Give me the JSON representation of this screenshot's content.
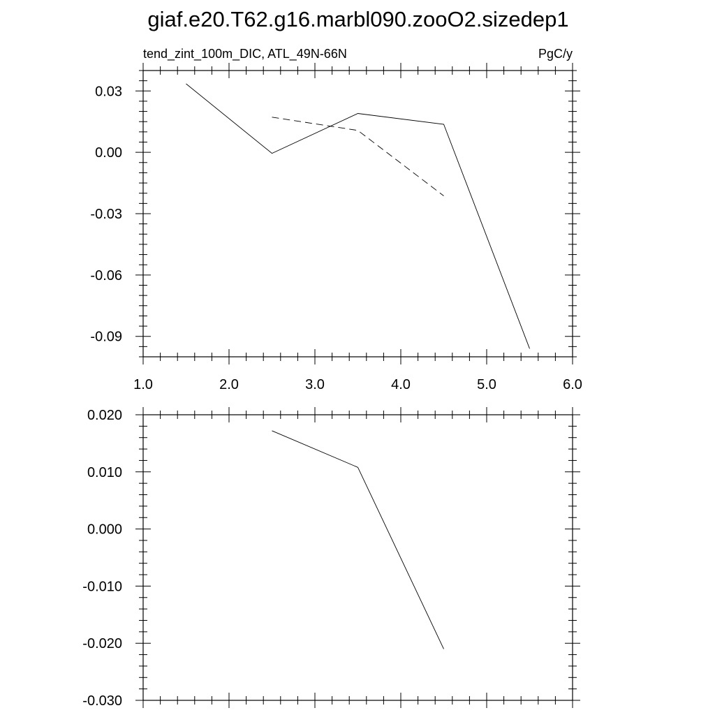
{
  "title": "giaf.e20.T62.g16.marbl090.zooO2.sizedep1",
  "chart_data": [
    {
      "type": "line",
      "left_label": "tend_zint_100m_DIC, ATL_49N-66N",
      "right_label": "PgC/y",
      "xlim": [
        1.0,
        6.0
      ],
      "ylim": [
        -0.1,
        0.04
      ],
      "x_ticks": [
        1.0,
        2.0,
        3.0,
        4.0,
        5.0,
        6.0
      ],
      "x_tick_labels": [
        "1.0",
        "2.0",
        "3.0",
        "4.0",
        "5.0",
        "6.0"
      ],
      "y_ticks": [
        0.03,
        0.0,
        -0.03,
        -0.06,
        -0.09
      ],
      "y_tick_labels": [
        "0.03",
        "0.00",
        "-0.03",
        "-0.06",
        "-0.09"
      ],
      "grid": false,
      "series": [
        {
          "style": "solid",
          "x": [
            1.5,
            2.5,
            3.5,
            4.5,
            5.5
          ],
          "y": [
            0.0335,
            -0.0005,
            0.019,
            0.0137,
            -0.096
          ]
        },
        {
          "style": "dashed",
          "x": [
            2.5,
            3.5,
            4.5
          ],
          "y": [
            0.0172,
            0.0107,
            -0.0213
          ]
        }
      ]
    },
    {
      "type": "line",
      "xlim": [
        1.0,
        6.0
      ],
      "ylim": [
        -0.03,
        0.02
      ],
      "x_ticks": [
        1.0,
        2.0,
        3.0,
        4.0,
        5.0,
        6.0
      ],
      "y_ticks": [
        0.02,
        0.01,
        0.0,
        -0.01,
        -0.02,
        -0.03
      ],
      "y_tick_labels": [
        "0.020",
        "0.010",
        "0.000",
        "-0.010",
        "-0.020",
        "-0.030"
      ],
      "grid": false,
      "series": [
        {
          "style": "solid",
          "x": [
            2.5,
            3.5,
            4.5
          ],
          "y": [
            0.0172,
            0.0108,
            -0.021
          ]
        }
      ]
    }
  ]
}
